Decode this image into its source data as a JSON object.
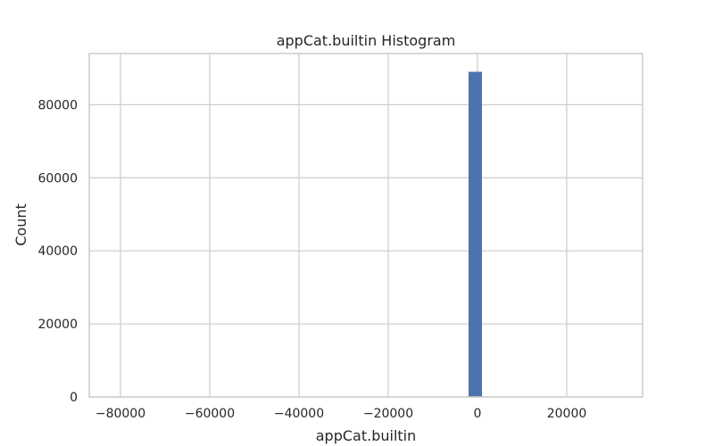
{
  "chart_data": {
    "type": "bar",
    "title": "appCat.builtin Histogram",
    "xlabel": "appCat.builtin",
    "ylabel": "Count",
    "xlim": [
      -87000,
      37000
    ],
    "ylim": [
      0,
      94000
    ],
    "x_ticks": [
      -80000,
      -60000,
      -40000,
      -20000,
      0,
      20000
    ],
    "x_tick_labels": [
      "−80000",
      "−60000",
      "−40000",
      "−20000",
      "0",
      "20000"
    ],
    "y_ticks": [
      0,
      20000,
      40000,
      60000,
      80000
    ],
    "y_tick_labels": [
      "0",
      "20000",
      "40000",
      "60000",
      "80000"
    ],
    "grid": true,
    "color": "#4c72b0",
    "bins": [
      {
        "x0": -2000,
        "x1": 1000,
        "count": 89000
      }
    ]
  }
}
